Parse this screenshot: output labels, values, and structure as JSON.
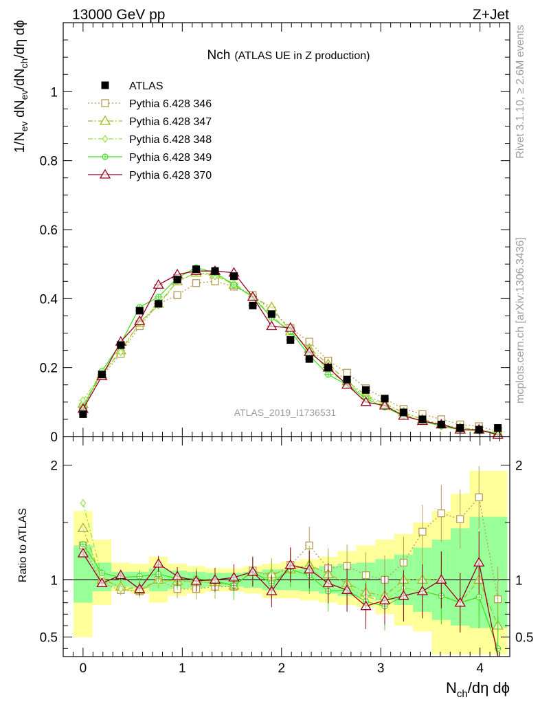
{
  "header": {
    "left": "13000 GeV pp",
    "right": "Z+Jet",
    "title_main": "Nch",
    "title_sub": "(ATLAS UE in Z production)",
    "analysis_id": "ATLAS_2019_I1736531",
    "side_top": "Rivet 3.1.10, ≥ 2.6M events",
    "side_bottom": "mcplots.cern.ch [arXiv:1306.3436]"
  },
  "chart_data": {
    "type": "scatter",
    "x_axis": {
      "label": "N",
      "label_sub": "ch",
      "label_tail": "/dη dϕ",
      "range": [
        -0.2,
        4.3
      ],
      "ticks": [
        "0",
        "1",
        "2",
        "3",
        "4"
      ]
    },
    "main_panel": {
      "ylabel_parts": [
        "1/N",
        "ev",
        " dN",
        "ev",
        "/dN",
        "ch",
        "/dη dϕ"
      ],
      "ylim": [
        0,
        1.2
      ],
      "yticks": [
        "0",
        "0.2",
        "0.4",
        "0.6",
        "0.8",
        "1"
      ],
      "x": [
        0.0,
        0.19,
        0.38,
        0.57,
        0.76,
        0.95,
        1.14,
        1.33,
        1.52,
        1.71,
        1.9,
        2.09,
        2.28,
        2.47,
        2.66,
        2.85,
        3.04,
        3.23,
        3.42,
        3.61,
        3.8,
        3.99,
        4.18
      ],
      "series": [
        {
          "name": "ATLAS",
          "color": "#000000",
          "marker": "filled-square",
          "line": "none",
          "values": [
            0.065,
            0.18,
            0.265,
            0.365,
            0.385,
            0.455,
            0.485,
            0.48,
            0.465,
            0.38,
            0.355,
            0.28,
            0.225,
            0.2,
            0.165,
            0.135,
            0.11,
            0.07,
            0.05,
            0.035,
            0.025,
            0.02,
            0.025
          ]
        },
        {
          "name": "Pythia 6.428 346",
          "color": "#b89a58",
          "marker": "open-square",
          "line": "dotted",
          "values": [
            0.085,
            0.175,
            0.24,
            0.32,
            0.385,
            0.41,
            0.445,
            0.45,
            0.435,
            0.41,
            0.365,
            0.315,
            0.275,
            0.22,
            0.185,
            0.14,
            0.11,
            0.08,
            0.065,
            0.05,
            0.035,
            0.03,
            0.015
          ]
        },
        {
          "name": "Pythia 6.428 347",
          "color": "#a8b820",
          "marker": "open-triangle",
          "line": "dashdot",
          "values": [
            0.095,
            0.18,
            0.25,
            0.33,
            0.385,
            0.45,
            0.475,
            0.47,
            0.44,
            0.405,
            0.375,
            0.305,
            0.255,
            0.21,
            0.16,
            0.12,
            0.095,
            0.07,
            0.05,
            0.035,
            0.025,
            0.02,
            0.01
          ]
        },
        {
          "name": "Pythia 6.428 348",
          "color": "#98e040",
          "marker": "open-diamond",
          "line": "dashdot",
          "values": [
            0.105,
            0.185,
            0.245,
            0.33,
            0.38,
            0.45,
            0.475,
            0.465,
            0.445,
            0.405,
            0.35,
            0.305,
            0.255,
            0.19,
            0.155,
            0.115,
            0.09,
            0.065,
            0.045,
            0.03,
            0.02,
            0.017,
            0.01
          ]
        },
        {
          "name": "Pythia 6.428 349",
          "color": "#40e020",
          "marker": "open-circle-cross",
          "line": "solid",
          "values": [
            0.085,
            0.19,
            0.27,
            0.375,
            0.405,
            0.46,
            0.49,
            0.475,
            0.44,
            0.405,
            0.345,
            0.305,
            0.235,
            0.18,
            0.15,
            0.11,
            0.085,
            0.06,
            0.045,
            0.03,
            0.02,
            0.017,
            0.01
          ]
        },
        {
          "name": "Pythia 6.428 370",
          "color": "#990020",
          "marker": "open-triangle",
          "line": "solid",
          "values": [
            0.08,
            0.175,
            0.275,
            0.335,
            0.44,
            0.47,
            0.48,
            0.48,
            0.475,
            0.405,
            0.32,
            0.315,
            0.245,
            0.2,
            0.15,
            0.1,
            0.09,
            0.06,
            0.045,
            0.035,
            0.02,
            0.02,
            0.005
          ]
        }
      ]
    },
    "ratio_panel": {
      "ylabel": "Ratio to ATLAS",
      "ylim": [
        0.33,
        2.25
      ],
      "yticks": [
        "0.5",
        "1",
        "2"
      ],
      "yellow_band": [
        [
          0.5,
          1.6
        ],
        [
          0.78,
          1.35
        ],
        [
          0.9,
          1.15
        ],
        [
          0.88,
          1.14
        ],
        [
          0.8,
          1.2
        ],
        [
          0.86,
          1.14
        ],
        [
          0.88,
          1.12
        ],
        [
          0.9,
          1.1
        ],
        [
          0.9,
          1.1
        ],
        [
          0.88,
          1.12
        ],
        [
          0.84,
          1.14
        ],
        [
          0.84,
          1.16
        ],
        [
          0.82,
          1.18
        ],
        [
          0.8,
          1.2
        ],
        [
          0.78,
          1.25
        ],
        [
          0.76,
          1.3
        ],
        [
          0.7,
          1.35
        ],
        [
          0.6,
          1.4
        ],
        [
          0.55,
          1.5
        ],
        [
          0.35,
          1.6
        ],
        [
          0.35,
          1.75
        ],
        [
          0.35,
          1.95
        ],
        [
          0.35,
          1.95
        ]
      ],
      "green_band": [
        [
          0.8,
          1.3
        ],
        [
          0.9,
          1.15
        ],
        [
          0.94,
          1.07
        ],
        [
          0.93,
          1.07
        ],
        [
          0.9,
          1.1
        ],
        [
          0.92,
          1.08
        ],
        [
          0.93,
          1.07
        ],
        [
          0.94,
          1.06
        ],
        [
          0.94,
          1.06
        ],
        [
          0.93,
          1.07
        ],
        [
          0.91,
          1.09
        ],
        [
          0.91,
          1.09
        ],
        [
          0.9,
          1.1
        ],
        [
          0.88,
          1.12
        ],
        [
          0.86,
          1.14
        ],
        [
          0.85,
          1.15
        ],
        [
          0.82,
          1.18
        ],
        [
          0.78,
          1.22
        ],
        [
          0.72,
          1.28
        ],
        [
          0.65,
          1.35
        ],
        [
          0.6,
          1.45
        ],
        [
          0.58,
          1.55
        ],
        [
          0.58,
          1.55
        ]
      ],
      "series": [
        {
          "name": "Pythia 6.428 346",
          "values": [
            1.3,
            0.97,
            0.91,
            0.9,
            1.0,
            0.92,
            0.92,
            0.94,
            0.94,
            1.08,
            1.03,
            1.13,
            1.3,
            1.1,
            1.12,
            1.04,
            1.0,
            1.15,
            1.42,
            1.58,
            1.53,
            1.72,
            0.83
          ]
        },
        {
          "name": "Pythia 6.428 347",
          "values": [
            1.45,
            1.0,
            0.94,
            0.91,
            1.0,
            0.99,
            0.98,
            0.98,
            0.95,
            1.07,
            1.05,
            1.09,
            1.13,
            1.05,
            0.97,
            0.89,
            0.86,
            1.0,
            1.0,
            1.0,
            0.8,
            1.0,
            0.6
          ]
        },
        {
          "name": "Pythia 6.428 348",
          "values": [
            1.67,
            1.03,
            0.92,
            0.9,
            0.99,
            0.99,
            0.98,
            0.97,
            0.96,
            1.07,
            0.99,
            1.09,
            1.13,
            0.95,
            0.94,
            0.85,
            0.82,
            0.93,
            0.9,
            0.86,
            0.8,
            0.85,
            0.4
          ]
        },
        {
          "name": "Pythia 6.428 349",
          "values": [
            1.31,
            1.06,
            1.02,
            1.03,
            1.05,
            1.01,
            1.01,
            0.99,
            0.95,
            1.07,
            0.97,
            1.09,
            1.04,
            0.9,
            0.91,
            0.81,
            0.77,
            0.86,
            0.9,
            0.86,
            0.8,
            0.85,
            0.4
          ]
        },
        {
          "name": "Pythia 6.428 370",
          "values": [
            1.23,
            0.97,
            1.04,
            0.92,
            1.14,
            1.03,
            0.99,
            1.0,
            1.02,
            1.07,
            0.9,
            1.13,
            1.09,
            0.97,
            0.91,
            0.77,
            0.82,
            0.86,
            0.9,
            1.0,
            0.8,
            1.15,
            0.15
          ]
        }
      ]
    }
  }
}
